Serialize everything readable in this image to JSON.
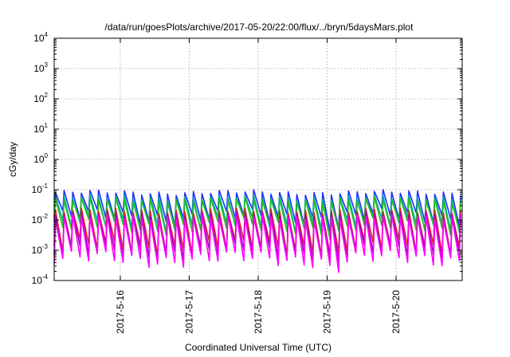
{
  "chart_data": {
    "type": "line",
    "title": "/data/run/goesPlots/archive/2017-05-20/22:00/flux/../bryn/5daysMars.plot",
    "xlabel": "Coordinated Universal Time (UTC)",
    "ylabel": "cGy/day",
    "yscale": "log",
    "ylim": [
      0.0001,
      10000
    ],
    "y_ticks": [
      {
        "base": "10",
        "exp": "-4",
        "value": 0.0001
      },
      {
        "base": "10",
        "exp": "-3",
        "value": 0.001
      },
      {
        "base": "10",
        "exp": "-2",
        "value": 0.01
      },
      {
        "base": "10",
        "exp": "-1",
        "value": 0.1
      },
      {
        "base": "10",
        "exp": "0",
        "value": 1
      },
      {
        "base": "10",
        "exp": "1",
        "value": 10
      },
      {
        "base": "10",
        "exp": "2",
        "value": 100
      },
      {
        "base": "10",
        "exp": "3",
        "value": 1000
      },
      {
        "base": "10",
        "exp": "4",
        "value": 10000
      }
    ],
    "x_range": [
      "2017-05-15 01:00",
      "2017-05-20 23:00"
    ],
    "x_ticks": [
      {
        "label": "2017-5-16",
        "value": "2017-05-16 00:00"
      },
      {
        "label": "2017-5-17",
        "value": "2017-05-17 00:00"
      },
      {
        "label": "2017-5-18",
        "value": "2017-05-18 00:00"
      },
      {
        "label": "2017-5-19",
        "value": "2017-05-19 00:00"
      },
      {
        "label": "2017-5-20",
        "value": "2017-05-20 00:00"
      }
    ],
    "grid": true,
    "legend": "none",
    "cycle_hours": 3,
    "dip_day": "2017-05-19",
    "series": [
      {
        "color": "#2030ff",
        "peak": 0.08,
        "trough": 0.012
      },
      {
        "color": "#00b0a0",
        "peak": 0.055,
        "trough": 0.007
      },
      {
        "color": "#20c020",
        "peak": 0.045,
        "trough": 0.006
      },
      {
        "color": "#e02020",
        "peak": 0.02,
        "trough": 0.0012
      },
      {
        "color": "#a000c0",
        "peak": 0.015,
        "trough": 0.0008
      },
      {
        "color": "#ff00ff",
        "peak": 0.012,
        "trough": 0.0005
      }
    ]
  }
}
